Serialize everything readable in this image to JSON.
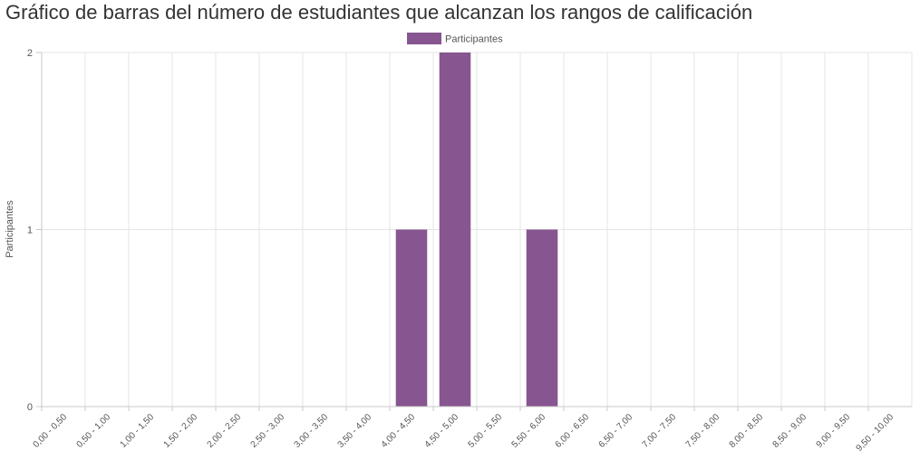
{
  "chart_data": {
    "type": "bar",
    "title": "Gráfico de barras del número de estudiantes que alcanzan los rangos de calificación",
    "xlabel": "",
    "ylabel": "Participantes",
    "categories": [
      "0,00 - 0,50",
      "0,50 - 1,00",
      "1,00 - 1,50",
      "1,50 - 2,00",
      "2,00 - 2,50",
      "2,50 - 3,00",
      "3,00 - 3,50",
      "3,50 - 4,00",
      "4,00 - 4,50",
      "4,50 - 5,00",
      "5,00 - 5,50",
      "5,50 - 6,00",
      "6,00 - 6,50",
      "6,50 - 7,00",
      "7,00 - 7,50",
      "7,50 - 8,00",
      "8,00 - 8,50",
      "8,50 - 9,00",
      "9,00 - 9,50",
      "9,50 - 10,00"
    ],
    "series": [
      {
        "name": "Participantes",
        "values": [
          0,
          0,
          0,
          0,
          0,
          0,
          0,
          0,
          1,
          2,
          0,
          1,
          0,
          0,
          0,
          0,
          0,
          0,
          0,
          0
        ],
        "color": "#87558f"
      }
    ],
    "ylim": [
      0,
      2
    ],
    "yticks": [
      0,
      1,
      2
    ],
    "grid": true,
    "legend_position": "top-center"
  }
}
